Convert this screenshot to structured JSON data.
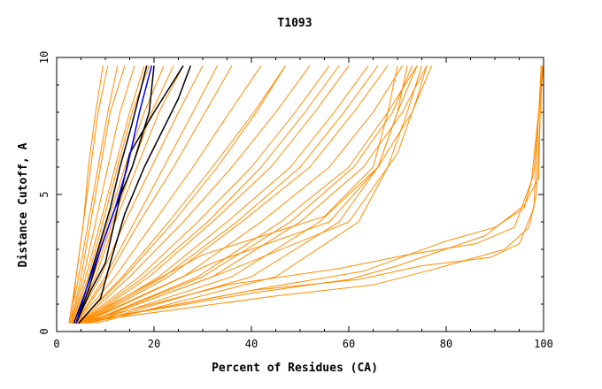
{
  "chart_data": {
    "type": "line",
    "title": "T1093",
    "xlabel": "Percent of Residues (CA)",
    "ylabel": "Distance Cutoff, A",
    "xlim": [
      0,
      100
    ],
    "ylim": [
      0,
      10
    ],
    "x_ticks": [
      0,
      20,
      40,
      60,
      80,
      100
    ],
    "y_ticks": [
      0,
      5,
      10
    ],
    "grid": false,
    "legend": "none",
    "colors": {
      "background": "#ffffff",
      "series_default": "#ff8c00",
      "highlight_black": "#000000",
      "highlight_blue": "#0000ff",
      "axes": "#000000"
    },
    "series": [
      {
        "color": "#ff8c00",
        "x": [
          2.5,
          4.0,
          5.5,
          7.0,
          8.5,
          10.5
        ],
        "y": [
          0.3,
          2.0,
          4.0,
          6.0,
          8.0,
          9.7
        ]
      },
      {
        "color": "#ff8c00",
        "x": [
          2.7,
          4.5,
          6.5,
          8.5,
          10.5,
          12.5
        ],
        "y": [
          0.3,
          2.0,
          4.0,
          6.0,
          8.0,
          9.7
        ]
      },
      {
        "color": "#ff8c00",
        "x": [
          3.0,
          5.0,
          7.0,
          9.0,
          11.0,
          14.0
        ],
        "y": [
          0.3,
          2.0,
          4.0,
          6.0,
          8.0,
          9.7
        ]
      },
      {
        "color": "#ff8c00",
        "x": [
          3.0,
          5.5,
          8.0,
          10.5,
          13.0,
          16.0
        ],
        "y": [
          0.3,
          2.0,
          4.0,
          6.0,
          8.0,
          9.7
        ]
      },
      {
        "color": "#ff8c00",
        "x": [
          3.2,
          6.5,
          9.5,
          12.5,
          15.5,
          19.0
        ],
        "y": [
          0.3,
          2.0,
          4.0,
          6.0,
          8.0,
          9.7
        ]
      },
      {
        "color": "#ff8c00",
        "x": [
          3.5,
          7.0,
          10.5,
          14.0,
          18.0,
          22.0
        ],
        "y": [
          0.3,
          2.0,
          4.0,
          6.0,
          8.0,
          9.7
        ]
      },
      {
        "color": "#ff8c00",
        "x": [
          3.5,
          8.0,
          12.0,
          16.5,
          21.0,
          26.0
        ],
        "y": [
          0.3,
          2.0,
          4.0,
          6.0,
          8.0,
          9.7
        ]
      },
      {
        "color": "#ff8c00",
        "x": [
          3.7,
          9.0,
          14.0,
          19.5,
          25.0,
          30.0
        ],
        "y": [
          0.3,
          2.0,
          4.0,
          6.0,
          8.0,
          9.7
        ]
      },
      {
        "color": "#ff8c00",
        "x": [
          4.0,
          10.5,
          17.0,
          24.0,
          30.5,
          36.0
        ],
        "y": [
          0.3,
          2.0,
          4.0,
          6.0,
          8.0,
          9.7
        ]
      },
      {
        "color": "#ff8c00",
        "x": [
          4.0,
          12.0,
          20.0,
          28.0,
          35.5,
          42.0
        ],
        "y": [
          0.3,
          2.0,
          4.0,
          6.0,
          8.0,
          9.7
        ]
      },
      {
        "color": "#ff8c00",
        "x": [
          4.2,
          13.5,
          23.0,
          32.0,
          40.5,
          47.0
        ],
        "y": [
          0.3,
          2.0,
          4.0,
          6.0,
          8.0,
          9.7
        ]
      },
      {
        "color": "#ff8c00",
        "x": [
          4.5,
          15.0,
          26.0,
          36.0,
          45.0,
          52.0
        ],
        "y": [
          0.3,
          2.0,
          4.0,
          6.0,
          8.0,
          9.7
        ]
      },
      {
        "color": "#ff8c00",
        "x": [
          4.5,
          17.0,
          29.0,
          40.0,
          49.0,
          56.0
        ],
        "y": [
          0.3,
          2.0,
          4.0,
          6.0,
          8.0,
          9.7
        ]
      },
      {
        "color": "#ff8c00",
        "x": [
          5.0,
          19.0,
          32.0,
          44.0,
          53.0,
          60.0
        ],
        "y": [
          0.3,
          2.0,
          4.0,
          6.0,
          8.0,
          9.7
        ]
      },
      {
        "color": "#ff8c00",
        "x": [
          5.0,
          21.0,
          35.0,
          48.0,
          57.0,
          64.0
        ],
        "y": [
          0.3,
          2.0,
          4.0,
          6.0,
          8.0,
          9.7
        ]
      },
      {
        "color": "#ff8c00",
        "x": [
          5.5,
          23.0,
          38.0,
          52.0,
          61.0,
          68.0
        ],
        "y": [
          0.3,
          2.0,
          4.0,
          6.0,
          8.0,
          9.7
        ]
      },
      {
        "color": "#ff8c00",
        "x": [
          5.5,
          26.0,
          42.0,
          56.0,
          65.0,
          71.0
        ],
        "y": [
          0.3,
          2.0,
          4.0,
          6.0,
          8.0,
          9.7
        ]
      },
      {
        "color": "#ff8c00",
        "x": [
          6.0,
          29.0,
          46.0,
          60.0,
          68.0,
          74.0
        ],
        "y": [
          0.3,
          2.0,
          4.0,
          6.0,
          8.0,
          9.7
        ]
      },
      {
        "color": "#ff8c00",
        "x": [
          6.0,
          32.0,
          50.0,
          63.0,
          71.0,
          76.0
        ],
        "y": [
          0.3,
          2.0,
          4.0,
          6.0,
          8.0,
          9.7
        ]
      },
      {
        "color": "#ff8c00",
        "x": [
          6.5,
          36.0,
          54.0,
          66.0,
          73.0,
          77.0
        ],
        "y": [
          0.3,
          2.0,
          4.0,
          6.0,
          8.0,
          9.7
        ]
      },
      {
        "color": "#ff8c00",
        "x": [
          3.0,
          4.0,
          5.5,
          6.5,
          8.0,
          9.5
        ],
        "y": [
          0.3,
          2.0,
          4.0,
          6.0,
          8.0,
          9.7
        ]
      },
      {
        "color": "#ff8c00",
        "x": [
          3.2,
          6.0,
          9.0,
          12.0,
          15.0,
          18.0
        ],
        "y": [
          0.3,
          2.0,
          4.0,
          6.0,
          8.0,
          9.7
        ]
      },
      {
        "color": "#ff8c00",
        "x": [
          3.5,
          7.5,
          11.5,
          15.5,
          19.5,
          24.0
        ],
        "y": [
          0.3,
          2.0,
          4.0,
          6.0,
          8.0,
          9.7
        ]
      },
      {
        "color": "#ff8c00",
        "x": [
          3.8,
          10.0,
          16.0,
          22.0,
          28.0,
          33.0
        ],
        "y": [
          0.3,
          2.0,
          4.0,
          6.0,
          8.0,
          9.7
        ]
      },
      {
        "color": "#ff8c00",
        "x": [
          4.2,
          14.0,
          24.0,
          33.0,
          41.0,
          47.0
        ],
        "y": [
          0.3,
          2.0,
          4.0,
          6.0,
          8.0,
          9.7
        ]
      },
      {
        "color": "#ff8c00",
        "x": [
          4.8,
          18.0,
          31.0,
          42.0,
          51.0,
          58.0
        ],
        "y": [
          0.3,
          2.0,
          4.0,
          6.0,
          8.0,
          9.7
        ]
      },
      {
        "color": "#ff8c00",
        "x": [
          5.2,
          22.0,
          37.0,
          50.0,
          59.0,
          66.0
        ],
        "y": [
          0.3,
          2.0,
          4.0,
          6.0,
          8.0,
          9.7
        ]
      },
      {
        "color": "#ff8c00",
        "x": [
          6.0,
          30.0,
          48.0,
          61.0,
          69.0,
          73.0
        ],
        "y": [
          0.3,
          2.0,
          4.0,
          6.0,
          8.0,
          9.7
        ]
      },
      {
        "color": "#ff8c00",
        "x": [
          7.0,
          40.0,
          58.0,
          66.0,
          70.0,
          72.0
        ],
        "y": [
          0.3,
          2.0,
          4.0,
          6.0,
          8.0,
          9.7
        ]
      },
      {
        "color": "#ff8c00",
        "x": [
          8.0,
          45.0,
          62.0,
          68.0,
          72.0,
          75.0
        ],
        "y": [
          0.3,
          2.0,
          4.0,
          6.0,
          8.0,
          9.7
        ]
      },
      {
        "color": "#ff8c00",
        "x": [
          4.0,
          30.0,
          55.0,
          65.0,
          68.0,
          70.0
        ],
        "y": [
          0.3,
          2.8,
          4.2,
          6.0,
          8.0,
          9.7
        ]
      },
      {
        "color": "#ff8c00",
        "x": [
          5.0,
          32.0,
          56.0,
          66.0,
          70.0,
          74.0
        ],
        "y": [
          0.3,
          2.5,
          4.0,
          6.0,
          8.0,
          9.7
        ]
      },
      {
        "color": "#ff8c00",
        "x": [
          6.0,
          35.0,
          60.0,
          70.0,
          74.0,
          76.0
        ],
        "y": [
          0.3,
          2.2,
          4.0,
          6.5,
          8.5,
          9.7
        ]
      },
      {
        "color": "#ff8c00",
        "x": [
          3.5,
          40.0,
          60.0,
          70.0,
          88.0,
          96.0,
          99.0,
          99.5
        ],
        "y": [
          0.3,
          1.4,
          1.9,
          2.4,
          3.5,
          4.6,
          5.6,
          9.7
        ]
      },
      {
        "color": "#ff8c00",
        "x": [
          3.8,
          45.0,
          65.0,
          78.0,
          92.0,
          97.0,
          98.5,
          99.8
        ],
        "y": [
          0.3,
          1.3,
          1.7,
          2.3,
          3.0,
          3.8,
          5.0,
          9.7
        ]
      },
      {
        "color": "#ff8c00",
        "x": [
          4.0,
          40.0,
          62.0,
          75.0,
          89.0,
          95.0,
          98.0,
          99.5
        ],
        "y": [
          0.3,
          1.5,
          1.9,
          2.4,
          2.7,
          3.2,
          4.5,
          9.7
        ]
      },
      {
        "color": "#ff8c00",
        "x": [
          4.2,
          35.0,
          58.0,
          72.0,
          86.0,
          94.0,
          97.5,
          100.0
        ],
        "y": [
          0.3,
          1.7,
          2.3,
          2.8,
          3.2,
          3.8,
          5.5,
          9.7
        ]
      },
      {
        "color": "#ff8c00",
        "x": [
          4.5,
          43.0,
          63.0,
          80.0,
          90.0,
          96.0,
          98.0,
          99.8
        ],
        "y": [
          0.3,
          1.6,
          2.2,
          3.3,
          3.8,
          4.5,
          5.8,
          9.7
        ]
      },
      {
        "color": "#000000",
        "x": [
          3.5,
          6.0,
          8.5,
          11.0,
          13.0,
          15.5,
          18.5
        ],
        "y": [
          0.3,
          1.5,
          3.0,
          4.5,
          6.0,
          7.6,
          9.7
        ]
      },
      {
        "color": "#000000",
        "x": [
          4.0,
          6.5,
          9.0,
          12.0,
          15.5,
          19.0,
          20.0
        ],
        "y": [
          0.3,
          1.5,
          3.0,
          4.5,
          6.0,
          8.0,
          9.7
        ]
      },
      {
        "color": "#000000",
        "x": [
          4.0,
          7.0,
          10.0,
          12.5,
          15.0,
          20.0,
          26.0
        ],
        "y": [
          0.3,
          1.5,
          2.5,
          4.5,
          6.5,
          8.0,
          9.7
        ]
      },
      {
        "color": "#000000",
        "x": [
          4.5,
          9.0,
          11.0,
          14.0,
          18.0,
          25.0,
          27.5
        ],
        "y": [
          0.3,
          1.2,
          2.5,
          4.3,
          6.0,
          8.5,
          9.7
        ]
      },
      {
        "color": "#0000ff",
        "x": [
          4.0,
          6.0,
          9.0,
          12.0,
          14.5,
          17.0,
          19.5
        ],
        "y": [
          0.3,
          1.5,
          3.0,
          4.5,
          6.0,
          8.0,
          9.7
        ]
      }
    ]
  }
}
